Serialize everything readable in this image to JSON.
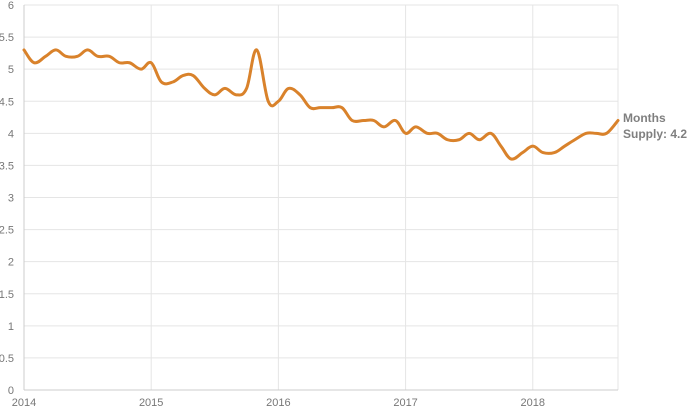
{
  "colors": {
    "line": "#d9822b",
    "grid": "#e5e5e5",
    "axis": "#cccccc",
    "tick_text": "#777777",
    "annotation_text": "#7f7f7f"
  },
  "chart_data": {
    "type": "line",
    "title": "",
    "xlabel": "",
    "ylabel": "",
    "xlim": [
      2014,
      2018.67
    ],
    "ylim": [
      0,
      6
    ],
    "y_ticks": [
      0,
      0.5,
      1,
      1.5,
      2,
      2.5,
      3,
      3.5,
      4,
      4.5,
      5,
      5.5,
      6
    ],
    "x_ticks": [
      2014,
      2015,
      2016,
      2017,
      2018
    ],
    "x_tick_labels": [
      "2014",
      "2015",
      "2016",
      "2017",
      "2018"
    ],
    "grid": true,
    "legend": "none",
    "annotation": {
      "lines": [
        "Months",
        "Supply: 4.2"
      ],
      "placement": "right-end"
    },
    "series": [
      {
        "x": [
          2014.0,
          2014.08,
          2014.17,
          2014.25,
          2014.33,
          2014.42,
          2014.5,
          2014.58,
          2014.67,
          2014.75,
          2014.83,
          2014.92,
          2015.0,
          2015.08,
          2015.17,
          2015.25,
          2015.33,
          2015.42,
          2015.5,
          2015.58,
          2015.67,
          2015.75,
          2015.83,
          2015.92,
          2016.0,
          2016.08,
          2016.17,
          2016.25,
          2016.33,
          2016.42,
          2016.5,
          2016.58,
          2016.67,
          2016.75,
          2016.83,
          2016.92,
          2017.0,
          2017.08,
          2017.17,
          2017.25,
          2017.33,
          2017.42,
          2017.5,
          2017.58,
          2017.67,
          2017.75,
          2017.83,
          2017.92,
          2018.0,
          2018.08,
          2018.17,
          2018.25,
          2018.33,
          2018.42,
          2018.5,
          2018.58,
          2018.67
        ],
        "values": [
          5.3,
          5.1,
          5.2,
          5.3,
          5.2,
          5.2,
          5.3,
          5.2,
          5.2,
          5.1,
          5.1,
          5.0,
          5.1,
          4.8,
          4.8,
          4.9,
          4.9,
          4.7,
          4.6,
          4.7,
          4.6,
          4.7,
          5.3,
          4.5,
          4.5,
          4.7,
          4.6,
          4.4,
          4.4,
          4.4,
          4.4,
          4.2,
          4.2,
          4.2,
          4.1,
          4.2,
          4.0,
          4.1,
          4.0,
          4.0,
          3.9,
          3.9,
          4.0,
          3.9,
          4.0,
          3.8,
          3.6,
          3.7,
          3.8,
          3.7,
          3.7,
          3.8,
          3.9,
          4.0,
          4.0,
          4.0,
          4.2
        ]
      }
    ]
  }
}
